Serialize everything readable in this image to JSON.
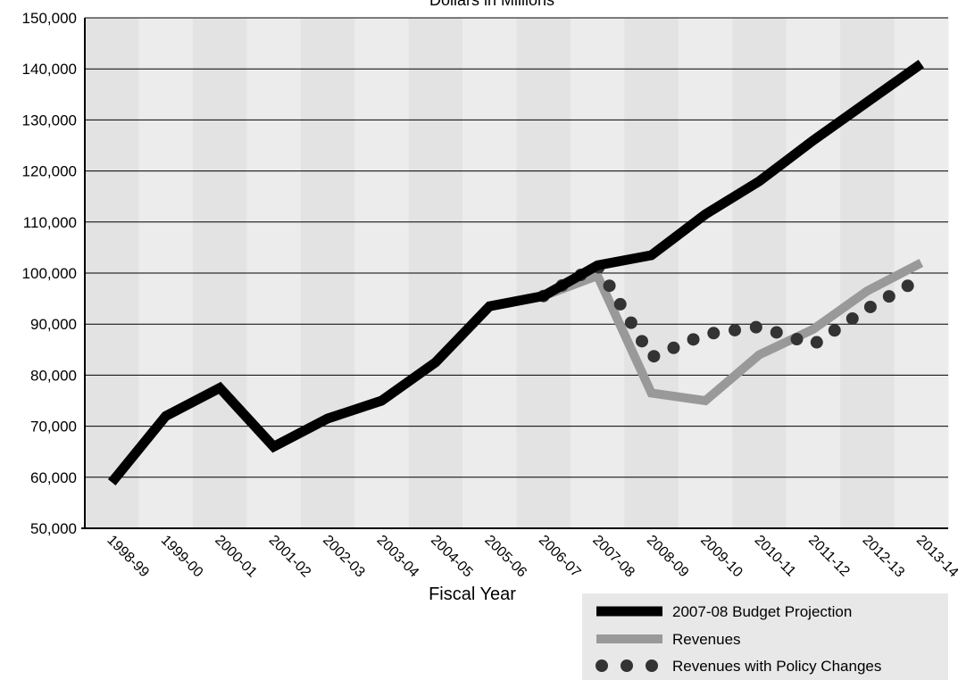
{
  "chart_data": {
    "type": "line",
    "subtitle": "Dollars in Millions",
    "xlabel": "Fiscal Year",
    "ylabel": "",
    "ylim": [
      50000,
      150000
    ],
    "y_tick_labels": [
      "50,000",
      "60,000",
      "70,000",
      "80,000",
      "90,000",
      "100,000",
      "110,000",
      "120,000",
      "130,000",
      "140,000",
      "150,000"
    ],
    "categories": [
      "1998-99",
      "1999-00",
      "2000-01",
      "2001-02",
      "2002-03",
      "2003-04",
      "2004-05",
      "2005-06",
      "2006-07",
      "2007-08",
      "2008-09",
      "2009-10",
      "2010-11",
      "2011-12",
      "2012-13",
      "2013-14"
    ],
    "series": [
      {
        "name": "2007-08 Budget Projection",
        "color": "#000000",
        "style": "solid",
        "values": [
          59000,
          72000,
          77500,
          66000,
          71500,
          75000,
          82500,
          93500,
          95500,
          101500,
          103500,
          111500,
          118000,
          126000,
          133500,
          141000
        ]
      },
      {
        "name": "Revenues",
        "color": "#999999",
        "style": "solid",
        "values": [
          null,
          null,
          null,
          null,
          null,
          null,
          null,
          null,
          95500,
          99500,
          76500,
          75000,
          84000,
          89000,
          96500,
          102000
        ]
      },
      {
        "name": "Revenues with Policy Changes",
        "color": "#333333",
        "style": "dotted",
        "values": [
          null,
          null,
          null,
          null,
          null,
          null,
          null,
          null,
          95500,
          101500,
          83500,
          88000,
          89500,
          86000,
          93000,
          99000
        ]
      }
    ],
    "legend_position": "bottom-right",
    "grid": "horizontal",
    "background": "alternating vertical bands"
  }
}
